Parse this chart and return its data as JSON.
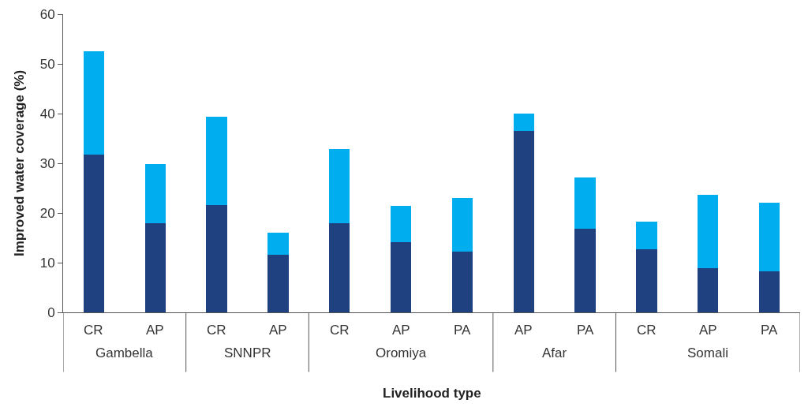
{
  "chart_data": {
    "type": "bar",
    "stacked": true,
    "xlabel": "Livelihood type",
    "ylabel": "Improved water coverage (%)",
    "categories": [
      "CR",
      "AP",
      "CR",
      "AP",
      "CR",
      "AP",
      "PA",
      "AP",
      "PA",
      "CR",
      "AP",
      "PA"
    ],
    "series": [
      {
        "color": "#1f4180",
        "values": [
          31.7,
          18.0,
          21.6,
          11.6,
          18.0,
          14.1,
          12.2,
          36.5,
          16.9,
          12.7,
          8.9,
          8.2
        ]
      },
      {
        "color": "#00aeef",
        "values": [
          20.8,
          11.9,
          17.7,
          4.4,
          14.8,
          7.4,
          10.8,
          3.5,
          10.2,
          5.5,
          14.8,
          13.9
        ]
      }
    ],
    "annotations": [
      "Gambella",
      "SNNPR",
      "Oromiya",
      "Afar",
      "Somali"
    ],
    "ylim": [
      0,
      60
    ],
    "yticks": [
      0,
      10,
      20,
      30,
      40,
      50,
      60
    ]
  }
}
